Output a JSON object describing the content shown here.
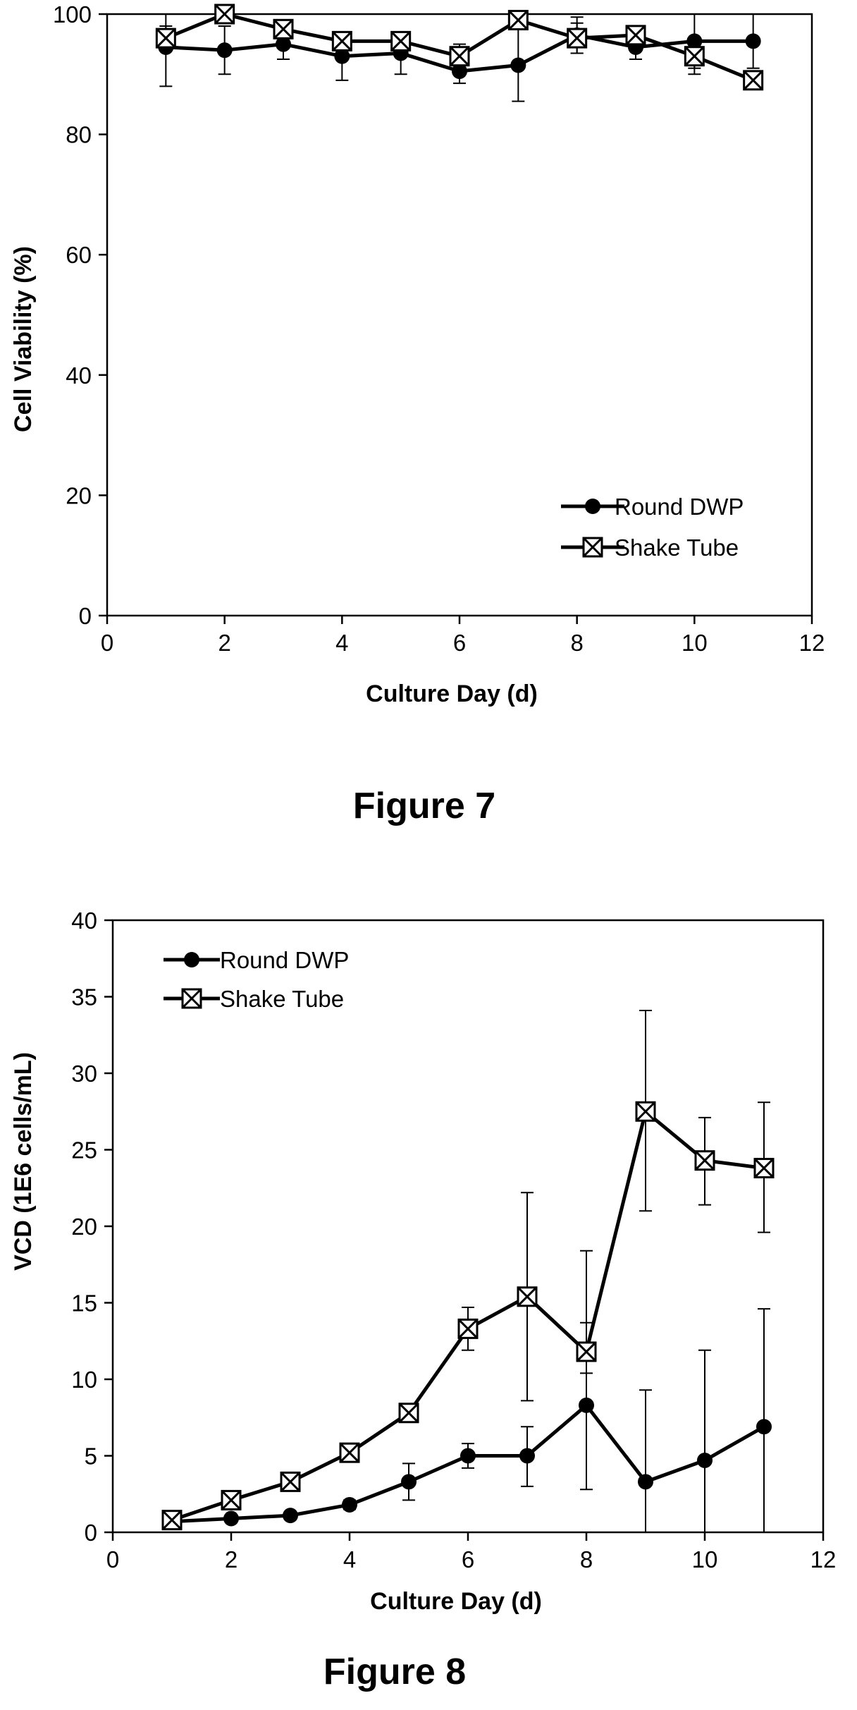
{
  "captions": [
    "Figure 7",
    "Figure 8"
  ],
  "chart_data": [
    {
      "type": "line",
      "title": "",
      "xlabel": "Culture Day (d)",
      "ylabel": "Cell Viability (%)",
      "xlim": [
        0,
        12
      ],
      "ylim": [
        0,
        100
      ],
      "xticks": [
        0,
        2,
        4,
        6,
        8,
        10,
        12
      ],
      "yticks": [
        0,
        20,
        40,
        60,
        80,
        100
      ],
      "grid": false,
      "legend_position": "bottom-right",
      "series": [
        {
          "name": "Round DWP",
          "marker": "circle",
          "x": [
            1,
            2,
            3,
            4,
            5,
            6,
            7,
            8,
            9,
            10,
            11
          ],
          "y": [
            94.5,
            94,
            95,
            93,
            93.5,
            90.5,
            91.5,
            96.5,
            94.5,
            95.5,
            95.5
          ],
          "err_low": [
            6.5,
            4,
            2.5,
            4,
            3.5,
            2,
            6,
            3,
            2,
            5.5,
            4.5
          ],
          "err_high": [
            6.5,
            4,
            2.5,
            4,
            3.5,
            2,
            6,
            3,
            2,
            5.5,
            4.5
          ]
        },
        {
          "name": "Shake Tube",
          "marker": "boxed-x",
          "x": [
            1,
            2,
            3,
            4,
            5,
            6,
            7,
            8,
            9,
            10,
            11
          ],
          "y": [
            96,
            100,
            97.5,
            95.5,
            95.5,
            93,
            99,
            96,
            96.5,
            93,
            89
          ],
          "err_low": [
            2,
            1,
            1.5,
            1.5,
            1.5,
            2,
            1.5,
            2.5,
            1.5,
            2,
            0
          ],
          "err_high": [
            2,
            1,
            1.5,
            1.5,
            1.5,
            2,
            1.5,
            2.5,
            1.5,
            2,
            0
          ]
        }
      ]
    },
    {
      "type": "line",
      "title": "",
      "xlabel": "Culture Day (d)",
      "ylabel": "VCD (1E6 cells/mL)",
      "xlim": [
        0,
        12
      ],
      "ylim": [
        0,
        40
      ],
      "xticks": [
        0,
        2,
        4,
        6,
        8,
        10,
        12
      ],
      "yticks": [
        0,
        5,
        10,
        15,
        20,
        25,
        30,
        35,
        40
      ],
      "grid": false,
      "legend_position": "top-left",
      "series": [
        {
          "name": "Round DWP",
          "marker": "circle",
          "x": [
            1,
            2,
            3,
            4,
            5,
            6,
            7,
            8,
            9,
            10,
            11
          ],
          "y": [
            0.7,
            0.9,
            1.1,
            1.8,
            3.3,
            5.0,
            5.0,
            8.3,
            3.3,
            4.7,
            6.9
          ],
          "err_low": [
            0.1,
            0.1,
            0.2,
            0.3,
            1.2,
            0.8,
            2.0,
            5.5,
            3.3,
            4.7,
            6.9
          ],
          "err_high": [
            0.1,
            0.1,
            0.2,
            0.3,
            1.2,
            0.8,
            1.9,
            5.4,
            6.0,
            7.2,
            7.7
          ]
        },
        {
          "name": "Shake Tube",
          "marker": "boxed-x",
          "x": [
            1,
            2,
            3,
            4,
            5,
            6,
            7,
            8,
            9,
            10,
            11
          ],
          "y": [
            0.8,
            2.1,
            3.3,
            5.2,
            7.8,
            13.3,
            15.4,
            11.8,
            27.5,
            24.3,
            23.8
          ],
          "err_low": [
            0.1,
            0.2,
            0.3,
            0.3,
            0.5,
            1.4,
            6.8,
            1.4,
            6.5,
            2.9,
            4.2
          ],
          "err_high": [
            0.1,
            0.2,
            0.3,
            0.3,
            0.5,
            1.4,
            6.8,
            6.6,
            6.6,
            2.8,
            4.3
          ]
        }
      ]
    }
  ]
}
